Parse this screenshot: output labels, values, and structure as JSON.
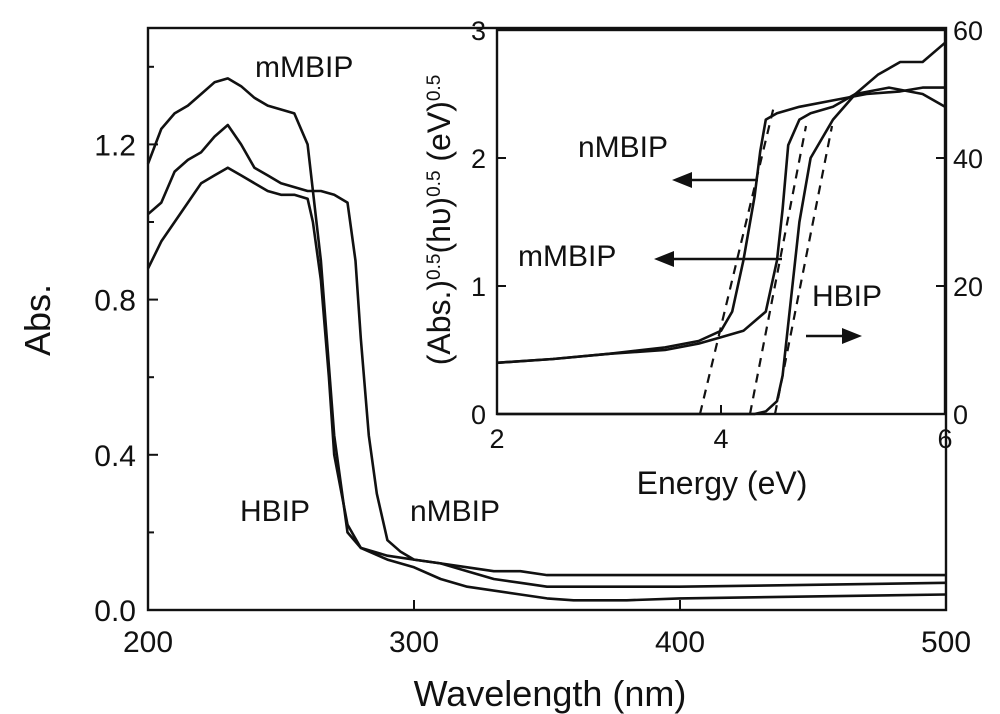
{
  "chart_data": [
    {
      "type": "line",
      "xlabel": "Wavelength (nm)",
      "ylabel": "Abs.",
      "xlim": [
        200,
        500
      ],
      "ylim": [
        0,
        1.5
      ],
      "x_ticks": [
        "200",
        "300",
        "400",
        "500"
      ],
      "y_ticks": [
        "0.0",
        "0.4",
        "0.8",
        "1.2"
      ],
      "series": [
        {
          "name": "mMBIP",
          "x": [
            200,
            205,
            210,
            215,
            220,
            225,
            230,
            235,
            240,
            245,
            250,
            255,
            260,
            265,
            270,
            275,
            280,
            290,
            300,
            310,
            320,
            330,
            340,
            350,
            360,
            380,
            400,
            450,
            500
          ],
          "y": [
            1.15,
            1.24,
            1.28,
            1.3,
            1.33,
            1.36,
            1.37,
            1.35,
            1.32,
            1.3,
            1.29,
            1.28,
            1.2,
            0.9,
            0.45,
            0.2,
            0.16,
            0.14,
            0.13,
            0.12,
            0.11,
            0.1,
            0.1,
            0.09,
            0.09,
            0.09,
            0.09,
            0.09,
            0.09
          ]
        },
        {
          "name": "HBIP",
          "x": [
            200,
            205,
            210,
            215,
            220,
            225,
            230,
            235,
            240,
            245,
            250,
            255,
            260,
            262,
            265,
            268,
            270,
            275,
            280,
            290,
            300,
            310,
            320,
            340,
            350,
            360,
            380,
            400,
            450,
            500
          ],
          "y": [
            0.88,
            0.95,
            1.0,
            1.05,
            1.1,
            1.12,
            1.14,
            1.12,
            1.1,
            1.08,
            1.07,
            1.07,
            1.06,
            1.0,
            0.85,
            0.6,
            0.4,
            0.22,
            0.16,
            0.13,
            0.11,
            0.08,
            0.06,
            0.04,
            0.03,
            0.025,
            0.025,
            0.03,
            0.035,
            0.04
          ]
        },
        {
          "name": "nMBIP",
          "x": [
            200,
            205,
            210,
            215,
            220,
            225,
            230,
            235,
            240,
            245,
            250,
            255,
            260,
            265,
            270,
            275,
            278,
            280,
            283,
            286,
            290,
            295,
            300,
            310,
            320,
            330,
            340,
            350,
            360,
            380,
            400,
            450,
            500
          ],
          "y": [
            1.02,
            1.05,
            1.13,
            1.16,
            1.18,
            1.22,
            1.25,
            1.2,
            1.14,
            1.12,
            1.1,
            1.09,
            1.08,
            1.08,
            1.07,
            1.05,
            0.9,
            0.7,
            0.45,
            0.3,
            0.18,
            0.15,
            0.13,
            0.12,
            0.1,
            0.08,
            0.07,
            0.06,
            0.06,
            0.06,
            0.06,
            0.065,
            0.07
          ]
        }
      ],
      "annotations": [
        "mMBIP",
        "HBIP",
        "nMBIP"
      ]
    },
    {
      "type": "line",
      "xlabel": "Energy (eV)",
      "ylabel": "(Abs.)^0.5(hυ)^0.5 (eV)^0.5",
      "xlim": [
        2,
        6
      ],
      "ylim_left": [
        0,
        3
      ],
      "ylim_right": [
        0,
        60
      ],
      "x_ticks": [
        "2",
        "4",
        "6"
      ],
      "y_ticks_left": [
        "0",
        "1",
        "2",
        "3"
      ],
      "y_ticks_right": [
        "0",
        "20",
        "40",
        "60"
      ],
      "series": [
        {
          "name": "nMBIP",
          "axis": "left",
          "x": [
            2.0,
            2.5,
            3.0,
            3.5,
            3.8,
            4.0,
            4.1,
            4.2,
            4.3,
            4.35,
            4.4,
            4.5,
            4.7,
            5.0,
            5.3,
            5.6,
            5.8,
            6.0
          ],
          "y": [
            0.4,
            0.43,
            0.47,
            0.52,
            0.57,
            0.65,
            0.8,
            1.2,
            1.7,
            2.05,
            2.3,
            2.35,
            2.4,
            2.45,
            2.5,
            2.52,
            2.55,
            2.55
          ]
        },
        {
          "name": "mMBIP",
          "axis": "left",
          "x": [
            2.0,
            2.5,
            3.0,
            3.5,
            3.8,
            4.0,
            4.2,
            4.4,
            4.5,
            4.55,
            4.6,
            4.7,
            4.8,
            5.0,
            5.2,
            5.5,
            5.8,
            6.0
          ],
          "y": [
            0.4,
            0.43,
            0.47,
            0.5,
            0.55,
            0.6,
            0.65,
            0.8,
            1.2,
            1.6,
            2.1,
            2.3,
            2.35,
            2.4,
            2.5,
            2.55,
            2.5,
            2.4
          ]
        },
        {
          "name": "HBIP",
          "axis": "right",
          "x": [
            2.0,
            4.0,
            4.2,
            4.3,
            4.4,
            4.5,
            4.55,
            4.6,
            4.7,
            4.8,
            5.0,
            5.2,
            5.4,
            5.6,
            5.8,
            6.0
          ],
          "y": [
            0,
            0,
            0,
            0,
            0.4,
            2,
            6,
            14,
            30,
            40,
            46,
            50,
            53,
            55,
            55,
            58
          ]
        }
      ],
      "annotations": [
        "nMBIP",
        "mMBIP",
        "HBIP"
      ]
    }
  ]
}
